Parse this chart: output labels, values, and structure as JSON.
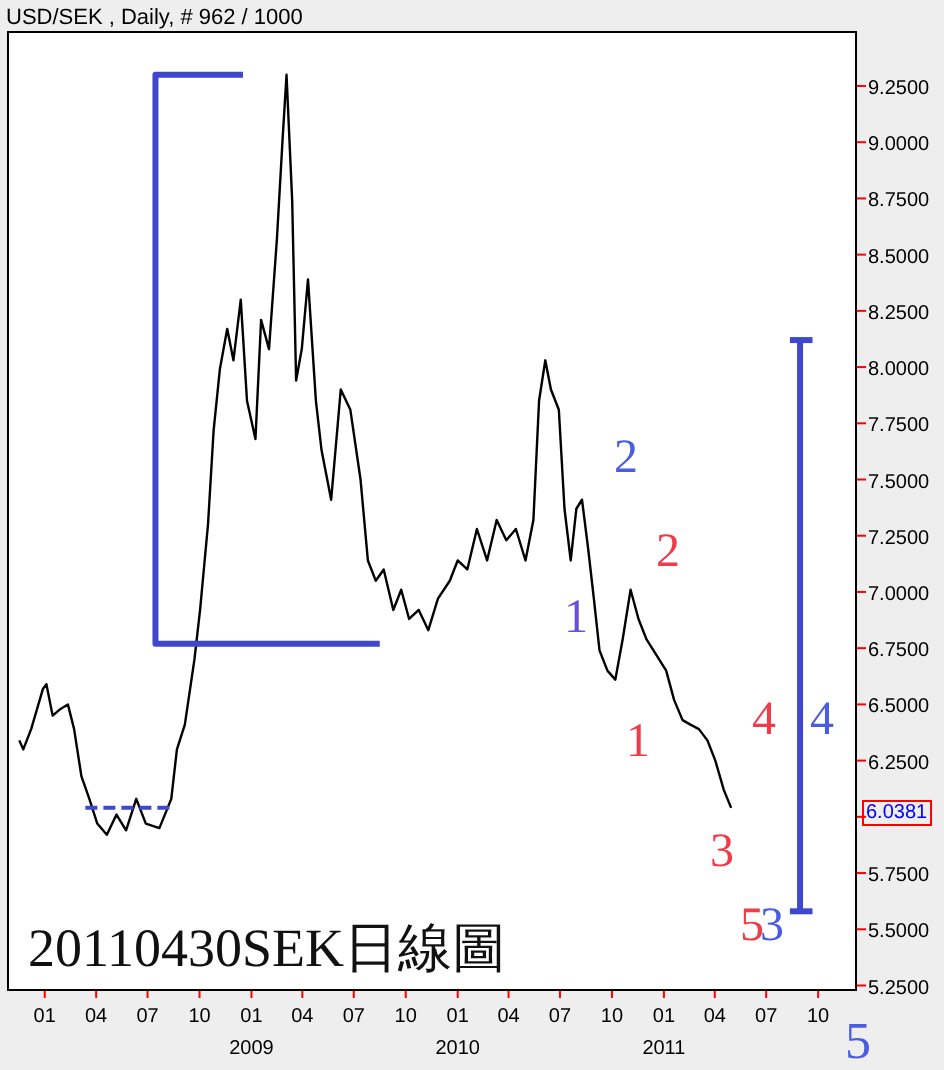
{
  "chart_data": {
    "type": "line",
    "title": "USD/SEK , Daily, # 962 / 1000",
    "xlim": [
      "2007-10-28",
      "2011-12-07"
    ],
    "ylim": [
      5.23,
      9.49
    ],
    "xticks": [
      {
        "value": "2008-01-01",
        "label": "01"
      },
      {
        "value": "2008-04-01",
        "label": "04"
      },
      {
        "value": "2008-07-01",
        "label": "07"
      },
      {
        "value": "2008-10-01",
        "label": "10"
      },
      {
        "value": "2009-01-01",
        "label": "01\n2009"
      },
      {
        "value": "2009-04-01",
        "label": "04"
      },
      {
        "value": "2009-07-01",
        "label": "07"
      },
      {
        "value": "2009-10-01",
        "label": "10"
      },
      {
        "value": "2010-01-01",
        "label": "01\n2010"
      },
      {
        "value": "2010-04-01",
        "label": "04"
      },
      {
        "value": "2010-07-01",
        "label": "07"
      },
      {
        "value": "2010-10-01",
        "label": "10"
      },
      {
        "value": "2011-01-01",
        "label": "01\n2011"
      },
      {
        "value": "2011-04-01",
        "label": "04"
      },
      {
        "value": "2011-07-01",
        "label": "07"
      },
      {
        "value": "2011-10-01",
        "label": "10"
      }
    ],
    "yticks": [
      {
        "value": 5.25,
        "label": "5.2500"
      },
      {
        "value": 5.5,
        "label": "5.5000"
      },
      {
        "value": 5.75,
        "label": "5.7500"
      },
      {
        "value": 6,
        "label": null
      },
      {
        "value": 6.25,
        "label": "6.2500"
      },
      {
        "value": 6.5,
        "label": "6.5000"
      },
      {
        "value": 6.75,
        "label": "6.7500"
      },
      {
        "value": 7,
        "label": "7.0000"
      },
      {
        "value": 7.25,
        "label": "7.2500"
      },
      {
        "value": 7.5,
        "label": "7.5000"
      },
      {
        "value": 7.75,
        "label": "7.7500"
      },
      {
        "value": 8,
        "label": "8.0000"
      },
      {
        "value": 8.25,
        "label": "8.2500"
      },
      {
        "value": 8.5,
        "label": "8.5000"
      },
      {
        "value": 8.75,
        "label": "8.7500"
      },
      {
        "value": 9,
        "label": "9.0000"
      },
      {
        "value": 9.25,
        "label": "9.2500"
      }
    ],
    "series": [
      {
        "color": "#000000",
        "x": [
          "2007-11-17",
          "2007-11-24",
          "2007-12-08",
          "2007-12-29",
          "2008-01-04",
          "2008-01-15",
          "2008-01-29",
          "2008-02-11",
          "2008-02-22",
          "2008-03-06",
          "2008-03-20",
          "2008-04-03",
          "2008-04-20",
          "2008-05-07",
          "2008-05-24",
          "2008-06-11",
          "2008-06-28",
          "2008-07-22",
          "2008-08-12",
          "2008-08-22",
          "2008-09-05",
          "2008-09-22",
          "2008-10-02",
          "2008-10-16",
          "2008-10-26",
          "2008-11-06",
          "2008-11-19",
          "2008-11-30",
          "2008-12-13",
          "2008-12-24",
          "2009-01-08",
          "2009-01-18",
          "2009-02-01",
          "2009-02-15",
          "2009-02-25",
          "2009-03-04",
          "2009-03-14",
          "2009-03-21",
          "2009-03-31",
          "2009-04-11",
          "2009-04-25",
          "2009-05-05",
          "2009-05-22",
          "2009-06-08",
          "2009-06-25",
          "2009-07-13",
          "2009-07-26",
          "2009-08-09",
          "2009-08-23",
          "2009-09-09",
          "2009-09-23",
          "2009-10-07",
          "2009-10-24",
          "2009-11-10",
          "2009-11-27",
          "2009-12-18",
          "2010-01-01",
          "2010-01-18",
          "2010-02-04",
          "2010-02-22",
          "2010-03-11",
          "2010-03-28",
          "2010-04-14",
          "2010-05-01",
          "2010-05-15",
          "2010-05-25",
          "2010-06-05",
          "2010-06-15",
          "2010-06-29",
          "2010-07-09",
          "2010-07-20",
          "2010-07-30",
          "2010-08-09",
          "2010-08-20",
          "2010-08-30",
          "2010-09-09",
          "2010-09-23",
          "2010-10-07",
          "2010-10-20",
          "2010-11-03",
          "2010-11-17",
          "2010-12-01",
          "2011-01-05",
          "2011-01-19",
          "2011-02-03",
          "2011-02-17",
          "2011-03-04",
          "2011-03-19",
          "2011-04-02",
          "2011-04-17",
          "2011-04-30"
        ],
        "values": [
          6.34,
          6.3,
          6.39,
          6.57,
          6.59,
          6.45,
          6.48,
          6.5,
          6.39,
          6.18,
          6.08,
          5.97,
          5.92,
          6.01,
          5.94,
          6.08,
          5.97,
          5.95,
          6.08,
          6.3,
          6.41,
          6.7,
          6.92,
          7.3,
          7.72,
          7.99,
          8.17,
          8.03,
          8.3,
          7.85,
          7.68,
          8.21,
          8.08,
          8.57,
          9.01,
          9.3,
          8.74,
          7.94,
          8.08,
          8.39,
          7.85,
          7.63,
          7.41,
          7.9,
          7.81,
          7.5,
          7.14,
          7.05,
          7.1,
          6.92,
          7.01,
          6.88,
          6.92,
          6.83,
          6.97,
          7.05,
          7.14,
          7.1,
          7.28,
          7.14,
          7.32,
          7.23,
          7.28,
          7.14,
          7.32,
          7.85,
          8.03,
          7.9,
          7.81,
          7.37,
          7.14,
          7.37,
          7.41,
          7.19,
          6.97,
          6.74,
          6.65,
          6.61,
          6.79,
          7.01,
          6.88,
          6.79,
          6.65,
          6.52,
          6.43,
          6.41,
          6.39,
          6.34,
          6.25,
          6.12,
          6.04
        ]
      },
      {
        "color": "#3f48cc",
        "x": [
          "2008-12-17",
          "2008-07-15",
          "2008-07-15",
          "2009-08-16"
        ],
        "values": [
          9.3,
          9.3,
          6.77,
          6.77
        ]
      },
      {
        "color": "#3f48cc",
        "x": [
          "2011-08-12",
          "2011-09-21"
        ],
        "values": [
          8.12,
          8.12
        ]
      },
      {
        "color": "#3f48cc",
        "x": [
          "2011-08-30",
          "2011-08-30"
        ],
        "values": [
          8.12,
          5.58
        ]
      },
      {
        "color": "#3f48cc",
        "x": [
          "2011-08-12",
          "2011-09-21"
        ],
        "values": [
          5.58,
          5.58
        ]
      },
      {
        "color": "#3f48cc",
        "line_style": "dashed",
        "x": [
          "2008-03-13",
          "2008-08-18"
        ],
        "values": [
          6.04,
          6.04
        ]
      }
    ],
    "annotations": [
      "2",
      "1",
      "2",
      "1",
      "4",
      "4",
      "3",
      "5",
      "3",
      "6.0381",
      "20110430SEK日線圖",
      "5"
    ]
  }
}
